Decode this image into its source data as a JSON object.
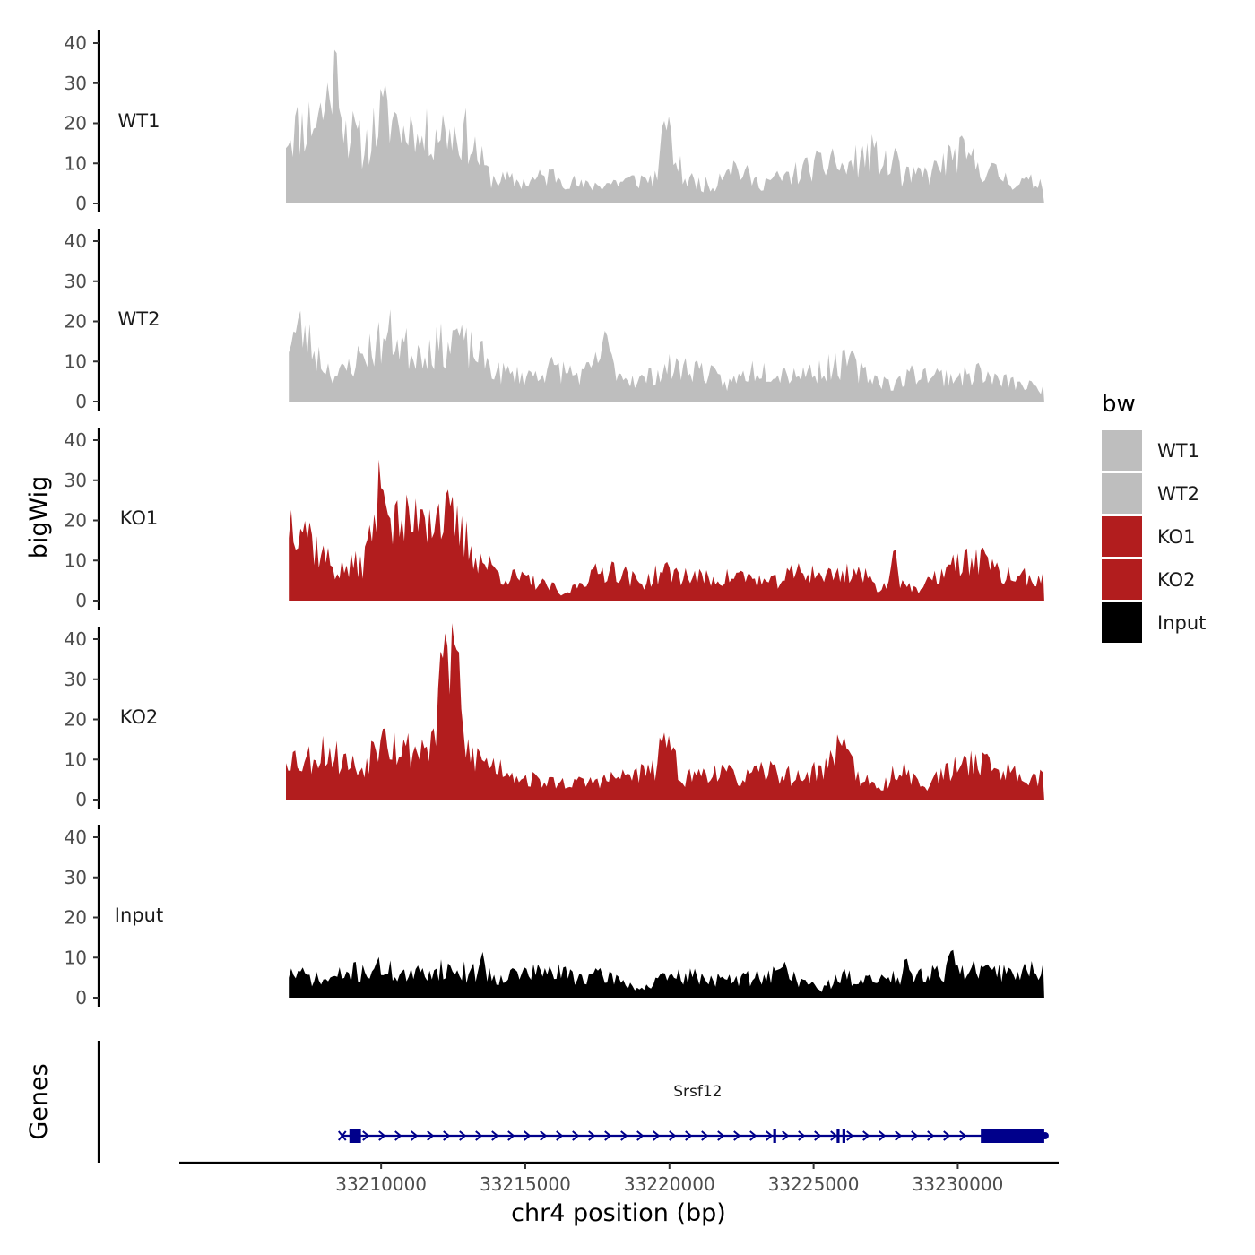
{
  "chart_data": {
    "type": "area",
    "title": "",
    "ylabel": "bigWig",
    "xlabel": "chr4 position (bp)",
    "xlim": [
      33203000,
      33233500
    ],
    "ylim": [
      0,
      42
    ],
    "y_ticks": [
      "0",
      "10",
      "20",
      "30",
      "40"
    ],
    "x_ticks": [
      {
        "value": 33210000,
        "label": "33210000"
      },
      {
        "value": 33215000,
        "label": "33215000"
      },
      {
        "value": 33220000,
        "label": "33220000"
      },
      {
        "value": 33225000,
        "label": "33225000"
      },
      {
        "value": 33230000,
        "label": "33230000"
      }
    ],
    "series": [
      {
        "name": "WT1",
        "color": "#bebebe",
        "x_start": 33206700,
        "x_end": 33233000,
        "seed": 11,
        "anchors": [
          [
            33206700,
            17
          ],
          [
            33207200,
            18
          ],
          [
            33208000,
            22
          ],
          [
            33208400,
            31
          ],
          [
            33208800,
            18
          ],
          [
            33209400,
            13
          ],
          [
            33210000,
            21
          ],
          [
            33210600,
            20
          ],
          [
            33211000,
            13
          ],
          [
            33212000,
            18
          ],
          [
            33212500,
            17
          ],
          [
            33213000,
            16
          ],
          [
            33213800,
            6
          ],
          [
            33215000,
            5
          ],
          [
            33216000,
            7
          ],
          [
            33217000,
            4
          ],
          [
            33218000,
            5
          ],
          [
            33219500,
            6
          ],
          [
            33219900,
            16
          ],
          [
            33220500,
            6
          ],
          [
            33221500,
            4
          ],
          [
            33222000,
            10
          ],
          [
            33223000,
            5
          ],
          [
            33224000,
            6
          ],
          [
            33225000,
            9
          ],
          [
            33226000,
            8
          ],
          [
            33227000,
            12
          ],
          [
            33228000,
            6
          ],
          [
            33229000,
            7
          ],
          [
            33230000,
            12
          ],
          [
            33231000,
            8
          ],
          [
            33232000,
            5
          ],
          [
            33233000,
            5
          ]
        ],
        "spikes": [
          [
            33208450,
            31
          ],
          [
            33211050,
            23
          ],
          [
            33219850,
            21
          ],
          [
            33227850,
            15
          ],
          [
            33225650,
            14
          ]
        ]
      },
      {
        "name": "WT2",
        "color": "#bebebe",
        "x_start": 33206800,
        "x_end": 33233000,
        "seed": 23,
        "anchors": [
          [
            33206800,
            15
          ],
          [
            33207200,
            17
          ],
          [
            33208000,
            9
          ],
          [
            33208500,
            6
          ],
          [
            33209500,
            12
          ],
          [
            33210400,
            16
          ],
          [
            33211000,
            12
          ],
          [
            33212000,
            13
          ],
          [
            33212600,
            14
          ],
          [
            33213400,
            11
          ],
          [
            33214000,
            7
          ],
          [
            33215000,
            6
          ],
          [
            33216000,
            8
          ],
          [
            33217000,
            6
          ],
          [
            33217800,
            11
          ],
          [
            33218400,
            6
          ],
          [
            33219000,
            5
          ],
          [
            33220000,
            8
          ],
          [
            33221000,
            8
          ],
          [
            33222000,
            4
          ],
          [
            33223000,
            8
          ],
          [
            33224000,
            7
          ],
          [
            33225000,
            7
          ],
          [
            33226000,
            9
          ],
          [
            33227000,
            6
          ],
          [
            33227800,
            4
          ],
          [
            33228500,
            7
          ],
          [
            33229500,
            6
          ],
          [
            33230500,
            6
          ],
          [
            33231500,
            5
          ],
          [
            33233000,
            3
          ]
        ],
        "spikes": [
          [
            33212600,
            19
          ],
          [
            33217750,
            18
          ],
          [
            33226300,
            13
          ],
          [
            33230700,
            10
          ]
        ]
      },
      {
        "name": "KO1",
        "color": "#b21d1e",
        "x_start": 33206800,
        "x_end": 33233000,
        "seed": 37,
        "anchors": [
          [
            33206800,
            19
          ],
          [
            33207200,
            21
          ],
          [
            33207700,
            13
          ],
          [
            33208500,
            7
          ],
          [
            33209400,
            9
          ],
          [
            33210000,
            26
          ],
          [
            33210500,
            18
          ],
          [
            33211000,
            18
          ],
          [
            33211800,
            22
          ],
          [
            33212500,
            18
          ],
          [
            33213400,
            10
          ],
          [
            33214200,
            6
          ],
          [
            33215000,
            5
          ],
          [
            33216000,
            3
          ],
          [
            33216300,
            1
          ],
          [
            33217000,
            5
          ],
          [
            33218000,
            8
          ],
          [
            33219000,
            4
          ],
          [
            33219800,
            7
          ],
          [
            33220500,
            6
          ],
          [
            33221500,
            5
          ],
          [
            33222500,
            6
          ],
          [
            33223500,
            4
          ],
          [
            33224500,
            7
          ],
          [
            33225500,
            6
          ],
          [
            33226500,
            7
          ],
          [
            33227300,
            3
          ],
          [
            33228000,
            5
          ],
          [
            33228600,
            2
          ],
          [
            33229500,
            7
          ],
          [
            33230500,
            10
          ],
          [
            33231500,
            6
          ],
          [
            33233000,
            5
          ]
        ],
        "spikes": [
          [
            33210050,
            30
          ],
          [
            33211400,
            24
          ],
          [
            33227800,
            15
          ],
          [
            33230900,
            14
          ]
        ]
      },
      {
        "name": "KO2",
        "color": "#b21d1e",
        "x_start": 33206700,
        "x_end": 33233000,
        "seed": 53,
        "anchors": [
          [
            33206700,
            11
          ],
          [
            33207300,
            9
          ],
          [
            33208000,
            12
          ],
          [
            33208800,
            9
          ],
          [
            33209300,
            7
          ],
          [
            33210000,
            16
          ],
          [
            33210700,
            12
          ],
          [
            33211300,
            12
          ],
          [
            33211800,
            14
          ],
          [
            33212200,
            30
          ],
          [
            33212500,
            38
          ],
          [
            33212900,
            12
          ],
          [
            33213600,
            9
          ],
          [
            33214400,
            7
          ],
          [
            33215000,
            5
          ],
          [
            33216000,
            4
          ],
          [
            33217000,
            4
          ],
          [
            33218000,
            5
          ],
          [
            33219500,
            7
          ],
          [
            33219800,
            13
          ],
          [
            33220500,
            5
          ],
          [
            33221500,
            7
          ],
          [
            33222500,
            5
          ],
          [
            33223500,
            7
          ],
          [
            33224500,
            5
          ],
          [
            33225500,
            8
          ],
          [
            33226000,
            14
          ],
          [
            33226500,
            6
          ],
          [
            33227300,
            2
          ],
          [
            33228000,
            8
          ],
          [
            33228800,
            3
          ],
          [
            33229500,
            6
          ],
          [
            33230600,
            10
          ],
          [
            33231500,
            7
          ],
          [
            33233000,
            5
          ]
        ],
        "spikes": [
          [
            33212200,
            42
          ],
          [
            33212600,
            38
          ],
          [
            33210100,
            19
          ],
          [
            33219800,
            17
          ],
          [
            33226050,
            16
          ]
        ]
      },
      {
        "name": "Input",
        "color": "#000000",
        "x_start": 33206800,
        "x_end": 33233000,
        "seed": 71,
        "anchors": [
          [
            33206800,
            6
          ],
          [
            33208000,
            4
          ],
          [
            33209000,
            6
          ],
          [
            33210000,
            7
          ],
          [
            33211000,
            5
          ],
          [
            33212000,
            7
          ],
          [
            33213000,
            6
          ],
          [
            33214000,
            5
          ],
          [
            33215000,
            6
          ],
          [
            33216000,
            6
          ],
          [
            33217000,
            5
          ],
          [
            33218000,
            5
          ],
          [
            33219000,
            2
          ],
          [
            33220000,
            5
          ],
          [
            33221000,
            5
          ],
          [
            33222000,
            4
          ],
          [
            33223000,
            5
          ],
          [
            33224000,
            6
          ],
          [
            33225200,
            2
          ],
          [
            33226000,
            5
          ],
          [
            33227000,
            4
          ],
          [
            33228000,
            5
          ],
          [
            33229000,
            6
          ],
          [
            33230000,
            7
          ],
          [
            33231000,
            6
          ],
          [
            33232000,
            6
          ],
          [
            33233000,
            7
          ]
        ],
        "spikes": [
          [
            33213500,
            12
          ],
          [
            33229800,
            13
          ],
          [
            33224000,
            9
          ],
          [
            33228200,
            11
          ]
        ]
      }
    ],
    "legend": {
      "title": "bw",
      "entries": [
        {
          "label": "WT1",
          "color": "#bebebe"
        },
        {
          "label": "WT2",
          "color": "#bebebe"
        },
        {
          "label": "KO1",
          "color": "#b21d1e"
        },
        {
          "label": "KO2",
          "color": "#b21d1e"
        },
        {
          "label": "Input",
          "color": "#000000"
        }
      ],
      "position": "right"
    },
    "genes": {
      "track_label": "Genes",
      "color": "#00008b",
      "items": [
        {
          "name": "Srsf12",
          "strand": "+",
          "start": 33208900,
          "end": 33233000,
          "exons": [
            [
              33208900,
              33209300
            ],
            [
              33223600,
              33223700
            ],
            [
              33225800,
              33225900
            ],
            [
              33226000,
              33226100
            ],
            [
              33230800,
              33233000
            ]
          ]
        }
      ]
    }
  }
}
